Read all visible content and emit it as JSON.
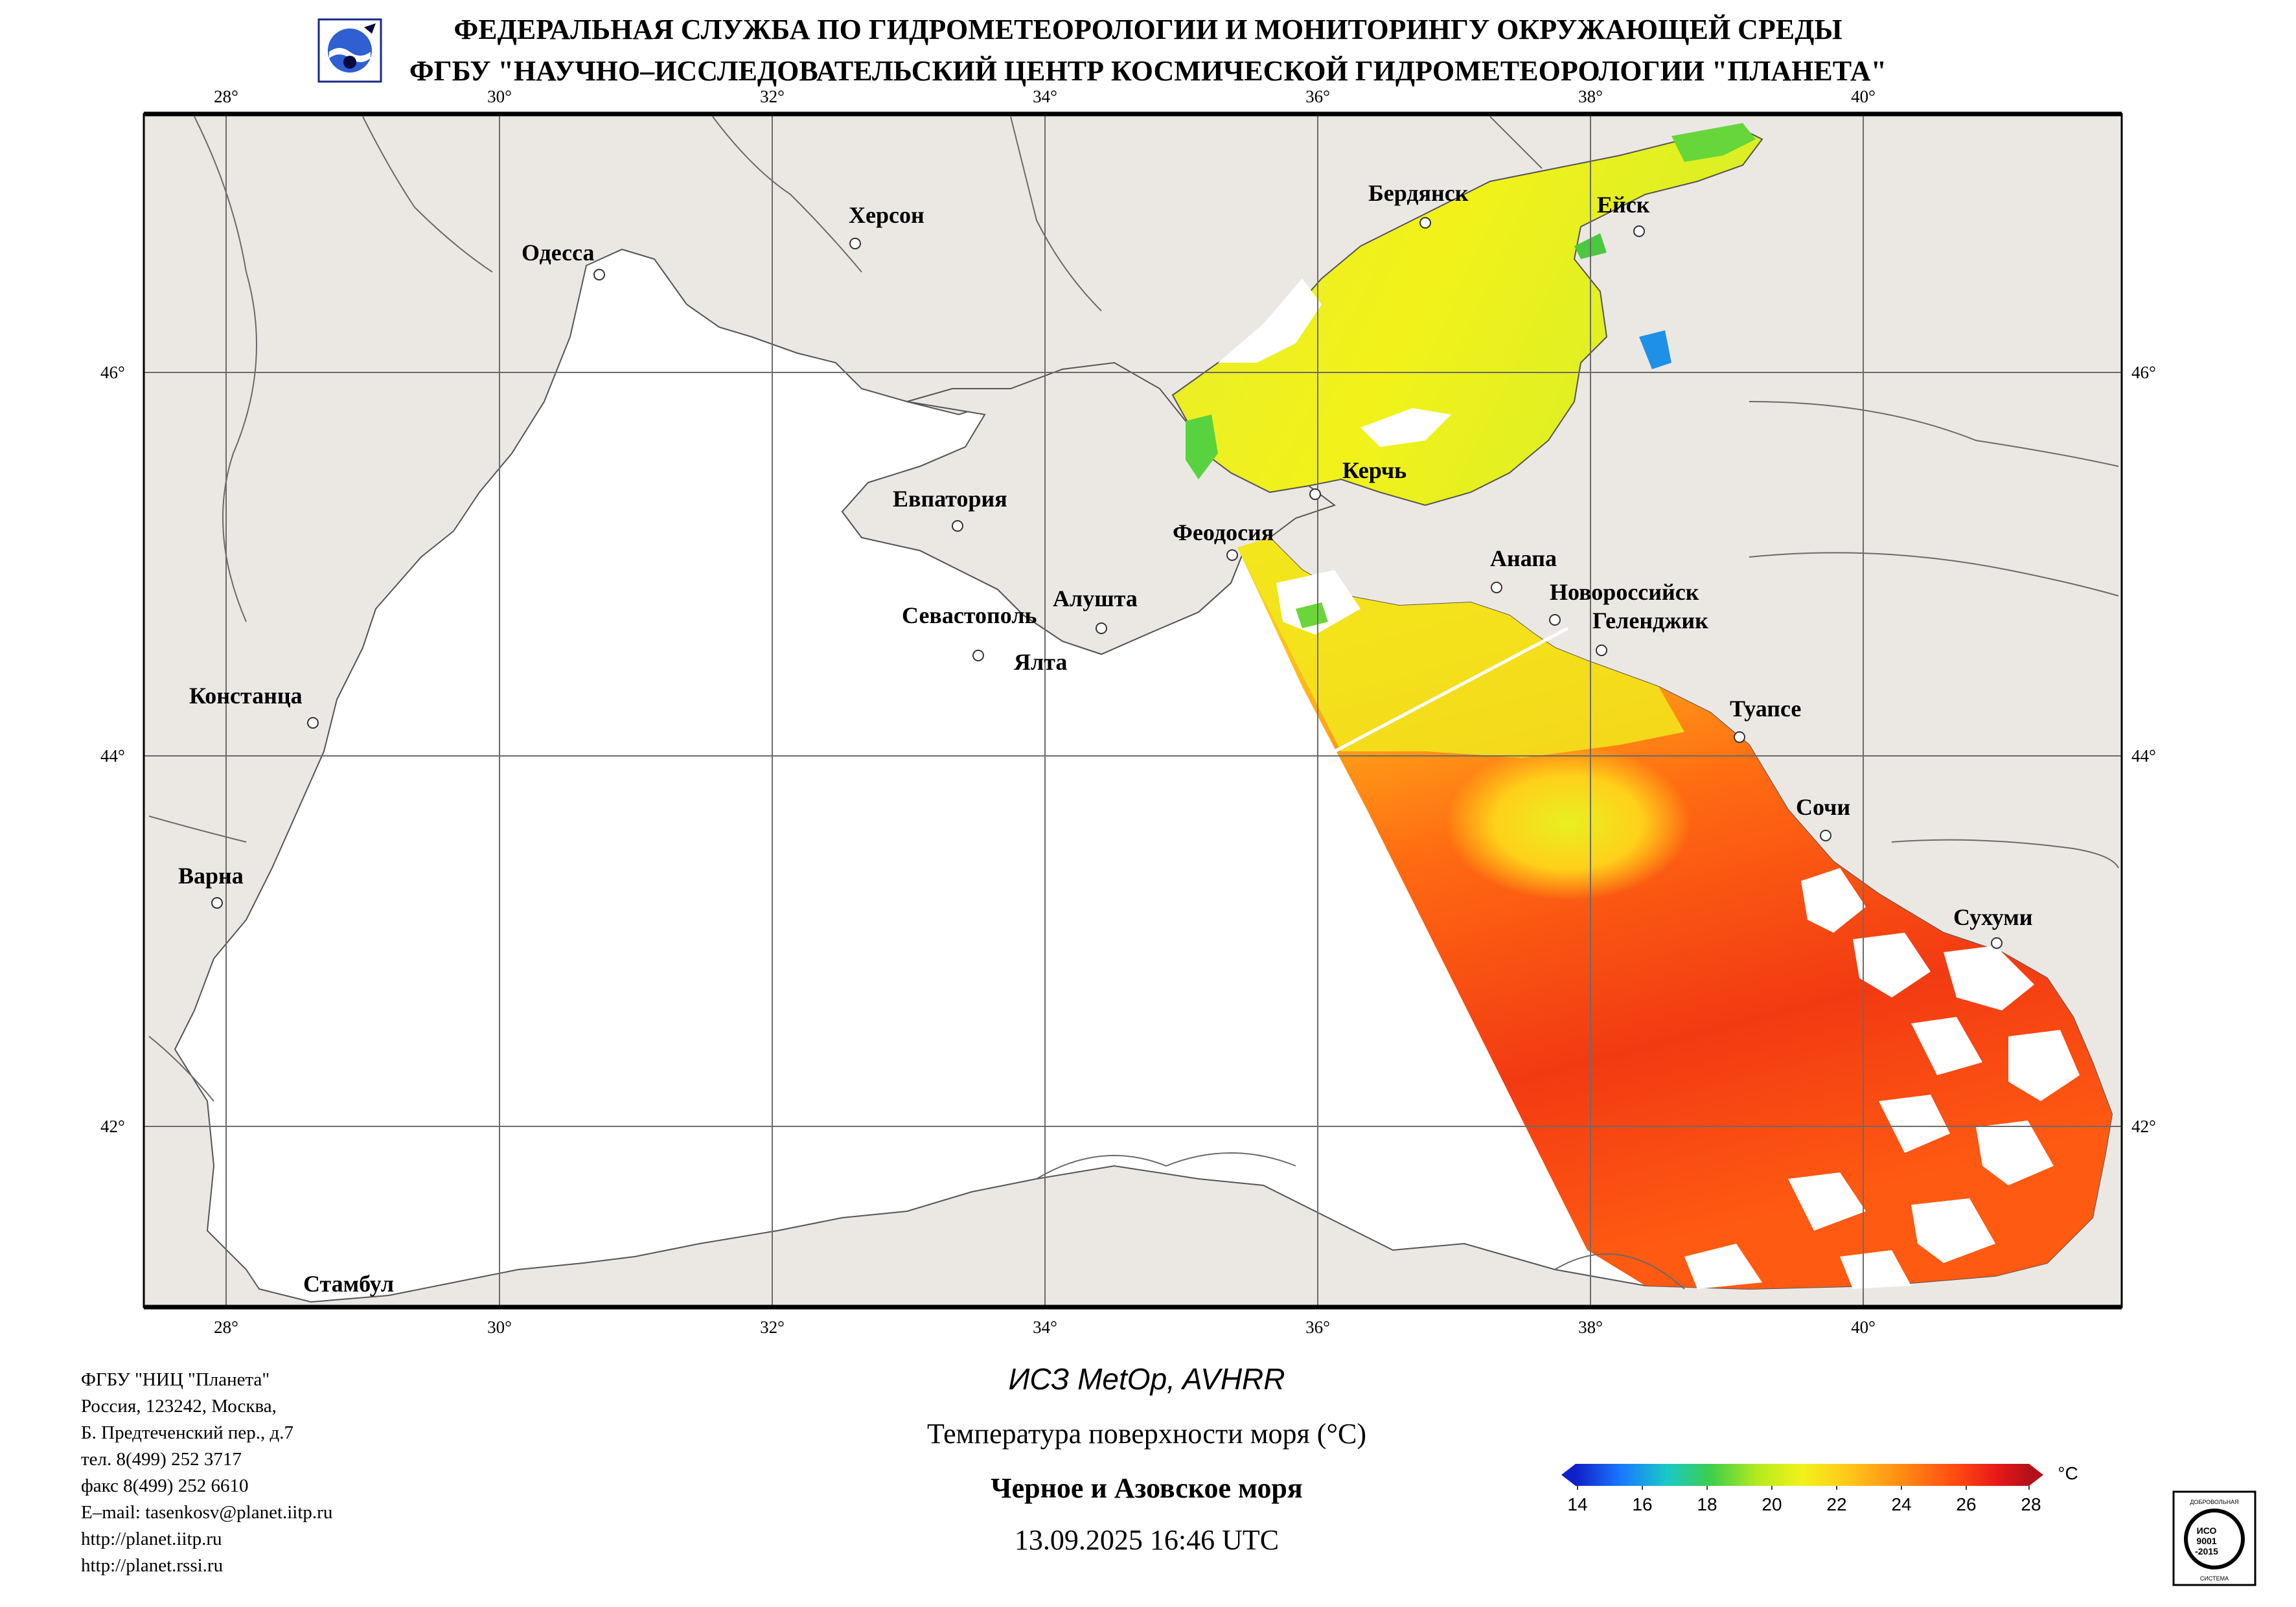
{
  "header": {
    "line1": "ФЕДЕРАЛЬНАЯ СЛУЖБА ПО ГИДРОМЕТЕОРОЛОГИИ И МОНИТОРИНГУ ОКРУЖАЮЩЕЙ СРЕДЫ",
    "line2": "ФГБУ \"НАУЧНО–ИССЛЕДОВАТЕЛЬСКИЙ ЦЕНТР КОСМИЧЕСКОЙ ГИДРОМЕТЕОРОЛОГИИ \"ПЛАНЕТА\""
  },
  "map": {
    "lon_labels": [
      "28°",
      "30°",
      "32°",
      "34°",
      "36°",
      "38°",
      "40°"
    ],
    "lat_labels": [
      "46°",
      "44°",
      "42°"
    ],
    "cities": {
      "berdyansk": "Бердянск",
      "yeysk": "Ейск",
      "kherson": "Херсон",
      "odessa": "Одесса",
      "evpatoria": "Евпатория",
      "kerch": "Керчь",
      "feodosia": "Феодосия",
      "anapa": "Анапа",
      "novorossiysk": "Новороссийск",
      "gelendzhik": "Геленджик",
      "sevastopol": "Севастополь",
      "alushta": "Алушта",
      "yalta": "Ялта",
      "constanta": "Констанца",
      "tuapse": "Туапсе",
      "sochi": "Сочи",
      "varna": "Варна",
      "sukhumi": "Сухуми",
      "istanbul": "Стамбул"
    },
    "colors": {
      "land": "#ebe8e4",
      "sea": "#ffffff",
      "grid": "#6b6b6b",
      "border": "#000000"
    }
  },
  "colorbar": {
    "ticks": [
      "14",
      "16",
      "18",
      "20",
      "22",
      "24",
      "26",
      "28"
    ],
    "unit": "°C",
    "colors": [
      "#1020c8",
      "#1a78ff",
      "#19c8c8",
      "#3ecf4a",
      "#b4ea1e",
      "#f2f21a",
      "#ffc81a",
      "#ff8a14",
      "#ff4a10",
      "#e81818",
      "#b4121a"
    ]
  },
  "footer": {
    "org": "ФГБУ \"НИЦ \"Планета\"",
    "addr1": "Россия, 123242, Москва,",
    "addr2": "Б. Предтеченский пер., д.7",
    "tel": "тел. 8(499) 252 3717",
    "fax": "факс 8(499) 252 6610",
    "email": "E–mail: tasenkosv@planet.iitp.ru",
    "url1": "http://planet.iitp.ru",
    "url2": "http://planet.rssi.ru"
  },
  "caption": {
    "satellite": "ИСЗ MetOp, AVHRR",
    "parameter": "Температура поверхности моря (°C)",
    "region": "Черное и Азовское моря",
    "datetime": "13.09.2025 16:46 UTC"
  },
  "iso_badge": {
    "text_top": "ДОБРОВОЛЬНАЯ",
    "text_mid1": "ИСО",
    "text_mid2": "9001",
    "text_mid3": "-2015",
    "text_bottom": "СИСТЕМА"
  }
}
